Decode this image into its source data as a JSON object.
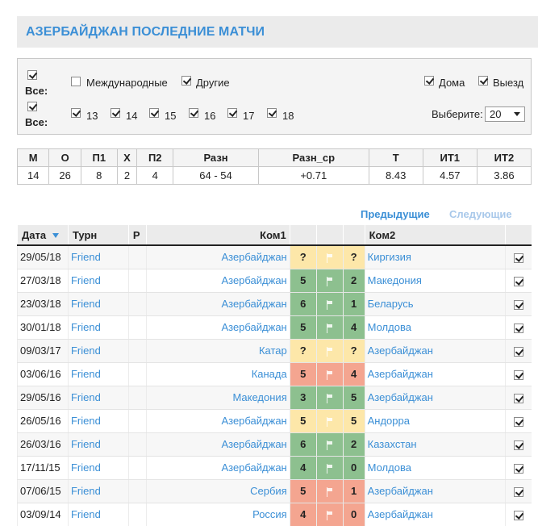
{
  "page_title": "АЗЕРБАЙДЖАН ПОСЛЕДНИЕ МАТЧИ",
  "filters": {
    "all_label": "Все:",
    "international_label": "Международные",
    "other_label": "Другие",
    "home_label": "Дома",
    "away_label": "Выезд",
    "years": [
      "13",
      "14",
      "15",
      "16",
      "17",
      "18"
    ],
    "select_label": "Выберите:",
    "select_value": "20"
  },
  "stats": {
    "headers": [
      "М",
      "О",
      "П1",
      "Х",
      "П2",
      "Разн",
      "Разн_ср",
      "Т",
      "ИТ1",
      "ИТ2"
    ],
    "values": [
      "14",
      "26",
      "8",
      "2",
      "4",
      "64 - 54",
      "+0.71",
      "8.43",
      "4.57",
      "3.86"
    ]
  },
  "pager": {
    "prev": "Предыдущие",
    "next": "Следующие"
  },
  "matches": {
    "headers": {
      "date": "Дата",
      "turn": "Турн",
      "r": "Р",
      "team1": "Ком1",
      "team2": "Ком2"
    },
    "rows": [
      {
        "date": "29/05/18",
        "turn": "Friend",
        "team1": "Азербайджан",
        "s1": "?",
        "s2": "?",
        "team2": "Киргизия",
        "result": "pending"
      },
      {
        "date": "27/03/18",
        "turn": "Friend",
        "team1": "Азербайджан",
        "s1": "5",
        "s2": "2",
        "team2": "Македония",
        "result": "win"
      },
      {
        "date": "23/03/18",
        "turn": "Friend",
        "team1": "Азербайджан",
        "s1": "6",
        "s2": "1",
        "team2": "Беларусь",
        "result": "win"
      },
      {
        "date": "30/01/18",
        "turn": "Friend",
        "team1": "Азербайджан",
        "s1": "5",
        "s2": "4",
        "team2": "Молдова",
        "result": "win"
      },
      {
        "date": "09/03/17",
        "turn": "Friend",
        "team1": "Катар",
        "s1": "?",
        "s2": "?",
        "team2": "Азербайджан",
        "result": "pending"
      },
      {
        "date": "03/06/16",
        "turn": "Friend",
        "team1": "Канада",
        "s1": "5",
        "s2": "4",
        "team2": "Азербайджан",
        "result": "loss"
      },
      {
        "date": "29/05/16",
        "turn": "Friend",
        "team1": "Македония",
        "s1": "3",
        "s2": "5",
        "team2": "Азербайджан",
        "result": "win"
      },
      {
        "date": "26/05/16",
        "turn": "Friend",
        "team1": "Азербайджан",
        "s1": "5",
        "s2": "5",
        "team2": "Андорра",
        "result": "draw"
      },
      {
        "date": "26/03/16",
        "turn": "Friend",
        "team1": "Азербайджан",
        "s1": "6",
        "s2": "2",
        "team2": "Казахстан",
        "result": "win"
      },
      {
        "date": "17/11/15",
        "turn": "Friend",
        "team1": "Азербайджан",
        "s1": "4",
        "s2": "0",
        "team2": "Молдова",
        "result": "win"
      },
      {
        "date": "07/06/15",
        "turn": "Friend",
        "team1": "Сербия",
        "s1": "5",
        "s2": "1",
        "team2": "Азербайджан",
        "result": "loss"
      },
      {
        "date": "03/09/14",
        "turn": "Friend",
        "team1": "Россия",
        "s1": "4",
        "s2": "0",
        "team2": "Азербайджан",
        "result": "loss"
      }
    ]
  },
  "colors": {
    "accent": "#3b8fd6",
    "win": "#8dc08f",
    "loss": "#f4a590",
    "draw": "#fde7a9",
    "pending": "#fde7a9"
  }
}
